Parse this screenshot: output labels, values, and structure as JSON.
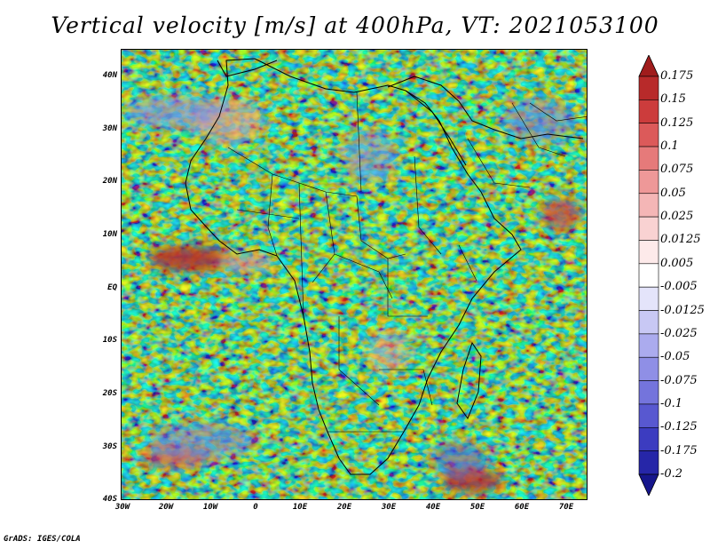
{
  "title": "Vertical velocity [m/s] at 400hPa, VT: 2021053100",
  "footer": "GrADS: IGES/COLA",
  "map": {
    "lat_range": [
      -40,
      45
    ],
    "lon_range": [
      -30,
      75
    ],
    "lat_ticks": [
      "40N",
      "30N",
      "20N",
      "10N",
      "EQ",
      "10S",
      "20S",
      "30S",
      "40S"
    ],
    "lon_ticks": [
      "30W",
      "20W",
      "10W",
      "0",
      "10E",
      "20E",
      "30E",
      "40E",
      "50E",
      "60E",
      "70E"
    ]
  },
  "colorbar": {
    "labels": [
      "0.175",
      "0.15",
      "0.125",
      "0.1",
      "0.075",
      "0.05",
      "0.025",
      "0.0125",
      "0.005",
      "-0.005",
      "-0.0125",
      "-0.025",
      "-0.05",
      "-0.075",
      "-0.1",
      "-0.125",
      "-0.175",
      "-0.2"
    ],
    "colors": [
      "#a01c1c",
      "#b82a2a",
      "#cc3c3c",
      "#dc5a5a",
      "#e67a7a",
      "#ee9898",
      "#f4b6b6",
      "#f9d2d2",
      "#fdeaea",
      "#ffffff",
      "#e4e4fa",
      "#c8c8f4",
      "#ababee",
      "#8f8fe6",
      "#7474dc",
      "#5858d0",
      "#3c3cc0",
      "#2626a8",
      "#16168c"
    ]
  }
}
